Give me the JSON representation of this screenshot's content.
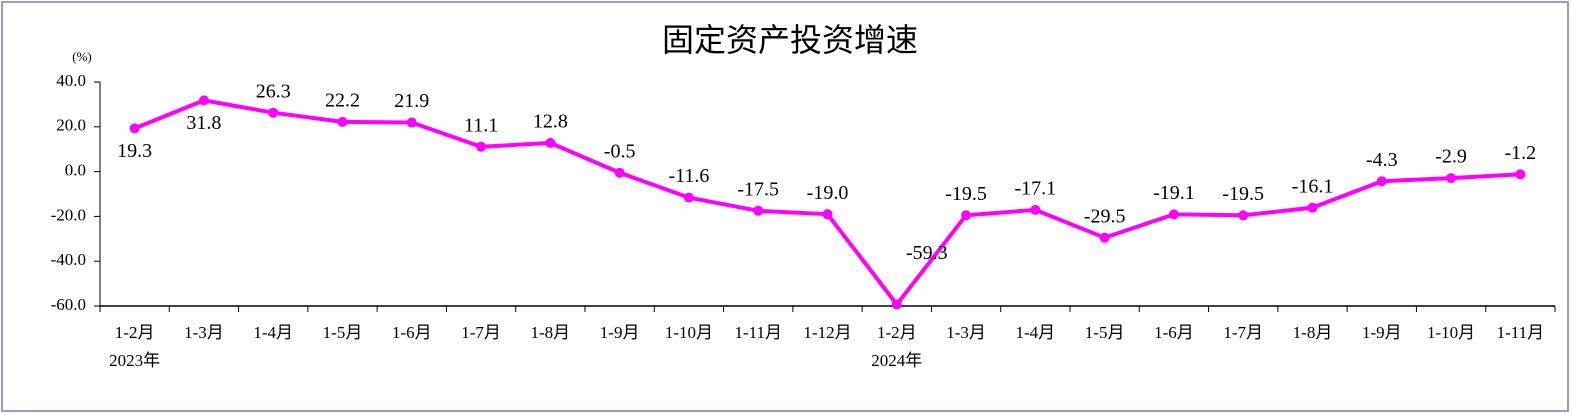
{
  "chart_data": {
    "type": "line",
    "title": "固定资产投资增速",
    "y_unit": "(%)",
    "categories": [
      "1-2月",
      "1-3月",
      "1-4月",
      "1-5月",
      "1-6月",
      "1-7月",
      "1-8月",
      "1-9月",
      "1-10月",
      "1-11月",
      "1-12月",
      "1-2月",
      "1-3月",
      "1-4月",
      "1-5月",
      "1-6月",
      "1-7月",
      "1-8月",
      "1-9月",
      "1-10月",
      "1-11月"
    ],
    "category_years": [
      "2023年",
      null,
      null,
      null,
      null,
      null,
      null,
      null,
      null,
      null,
      null,
      "2024年",
      null,
      null,
      null,
      null,
      null,
      null,
      null,
      null,
      null
    ],
    "values": [
      19.3,
      31.8,
      26.3,
      22.2,
      21.9,
      11.1,
      12.8,
      -0.5,
      -11.6,
      -17.5,
      -19.0,
      -59.3,
      -19.5,
      -17.1,
      -29.5,
      -19.1,
      -19.5,
      -16.1,
      -4.3,
      -2.9,
      -1.2
    ],
    "value_labels": [
      "19.3",
      "31.8",
      "26.3",
      "22.2",
      "21.9",
      "11.1",
      "12.8",
      "-0.5",
      "-11.6",
      "-17.5",
      "-19.0",
      "-59.3",
      "-19.5",
      "-17.1",
      "-29.5",
      "-19.1",
      "-19.5",
      "-16.1",
      "-4.3",
      "-2.9",
      "-1.2"
    ],
    "color": "#ff00ff",
    "ylim": [
      -60,
      40
    ],
    "yticks": [
      {
        "value": -60,
        "label": "-60.0"
      },
      {
        "value": -40,
        "label": "-40.0"
      },
      {
        "value": -20,
        "label": "-20.0"
      },
      {
        "value": 0,
        "label": "0.0"
      },
      {
        "value": 20,
        "label": "20.0"
      },
      {
        "value": 40,
        "label": "40.0"
      }
    ],
    "grid": false
  }
}
